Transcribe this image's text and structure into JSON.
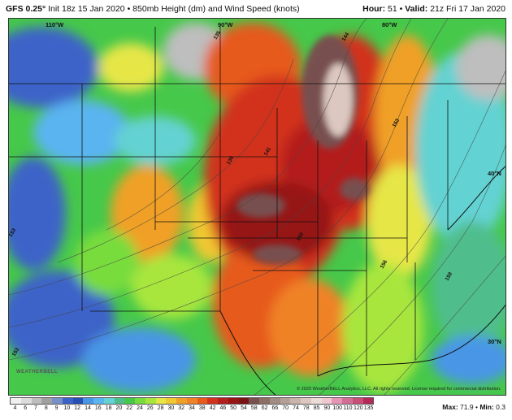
{
  "header": {
    "model": "GFS 0.25°",
    "init": "Init 18z 15 Jan 2020",
    "sep": "•",
    "product": "850mb Height (dm) and Wind Speed (knots)",
    "hour_label": "Hour:",
    "hour_value": "51",
    "valid_label": "Valid:",
    "valid_value": "21z Fri 17 Jan 2020"
  },
  "map": {
    "longitude_labels": [
      "110°W",
      "90°W",
      "80°W"
    ],
    "latitude_labels": [
      "40°N",
      "30°N"
    ],
    "contour_labels": [
      "144",
      "141",
      "138",
      "135",
      "150",
      "153",
      "156",
      "159",
      "153",
      "153"
    ],
    "logo_text": "WEATHERBELL",
    "copyright": "© 2020 WeatherBELL Analytics, LLC. All rights reserved. License required for commercial distribution."
  },
  "colors": {
    "scale": [
      "#f0f0f0",
      "#dcdcdc",
      "#bebebe",
      "#a0a0a0",
      "#7890c8",
      "#3c64c8",
      "#2850b4",
      "#4896e6",
      "#5ab4f0",
      "#64d2d2",
      "#50be8c",
      "#46c84a",
      "#78dc3c",
      "#a8e63c",
      "#e6e646",
      "#f0c832",
      "#f0a028",
      "#f08228",
      "#e65a1e",
      "#d2321e",
      "#b41e1e",
      "#961414",
      "#781414",
      "#785050",
      "#8c6e64",
      "#a08c82",
      "#b4a096",
      "#c8b4aa",
      "#dcc8c0",
      "#ecdcd8",
      "#f0c8d2",
      "#e696b4",
      "#d26e96",
      "#c85078",
      "#b4285a"
    ]
  },
  "scale_ticks": [
    "4",
    "6",
    "7",
    "8",
    "9",
    "10",
    "12",
    "14",
    "16",
    "18",
    "20",
    "22",
    "24",
    "26",
    "28",
    "30",
    "32",
    "34",
    "38",
    "42",
    "46",
    "50",
    "54",
    "58",
    "62",
    "66",
    "70",
    "74",
    "78",
    "85",
    "90",
    "100",
    "110",
    "120",
    "135"
  ],
  "stats": {
    "max_label": "Max:",
    "max_value": "71.9",
    "min_label": "Min:",
    "min_value": "0.3"
  }
}
